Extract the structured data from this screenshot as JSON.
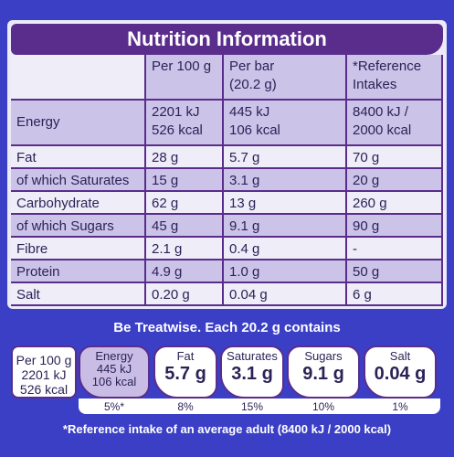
{
  "header": {
    "title": "Nutrition Information"
  },
  "table": {
    "columns": [
      "",
      "Per 100 g",
      [
        "Per bar",
        "(20.2 g)"
      ],
      [
        "*Reference",
        "Intakes"
      ]
    ],
    "rows": [
      [
        "Energy",
        [
          "2201 kJ",
          "526 kcal"
        ],
        [
          "445 kJ",
          "106 kcal"
        ],
        [
          "8400 kJ /",
          "2000 kcal"
        ]
      ],
      [
        "Fat",
        "28 g",
        "5.7 g",
        "70 g"
      ],
      [
        "of which Saturates",
        "15 g",
        "3.1 g",
        "20 g"
      ],
      [
        "Carbohydrate",
        "62 g",
        "13 g",
        "260 g"
      ],
      [
        "of which Sugars",
        "45 g",
        "9.1 g",
        "90 g"
      ],
      [
        "Fibre",
        "2.1 g",
        "0.4 g",
        "-"
      ],
      [
        "Protein",
        "4.9 g",
        "1.0 g",
        "50 g"
      ],
      [
        "Salt",
        "0.20 g",
        "0.04 g",
        "6 g"
      ]
    ]
  },
  "treatwise": {
    "heading": "Be Treatwise. Each 20.2 g contains",
    "per100": [
      "Per 100 g",
      "2201 kJ",
      "526 kcal"
    ],
    "badges": [
      {
        "label": "Energy",
        "value": [
          "445 kJ",
          "106 kcal"
        ],
        "percent": "5%*"
      },
      {
        "label": "Fat",
        "value": "5.7 g",
        "percent": "8%"
      },
      {
        "label": "Saturates",
        "value": "3.1 g",
        "percent": "15%"
      },
      {
        "label": "Sugars",
        "value": "9.1 g",
        "percent": "10%"
      },
      {
        "label": "Salt",
        "value": "0.04 g",
        "percent": "1%"
      }
    ],
    "footnote": "*Reference intake of an average adult (8400 kJ / 2000 kcal)"
  }
}
